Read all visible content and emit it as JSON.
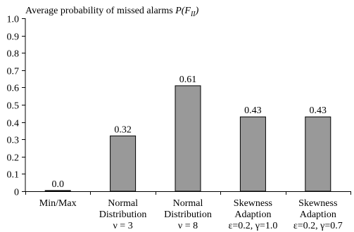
{
  "chart_data": {
    "type": "bar",
    "title": "Average probability of missed alarms P(F_II)",
    "title_parts": {
      "main": "Average probability of missed alarms ",
      "italic": "P(F",
      "subscript": "II",
      "close": ")"
    },
    "xlabel": "",
    "ylabel": "",
    "ylim": [
      0,
      1.0
    ],
    "yticks": [
      "0",
      "0.1",
      "0.2",
      "0.3",
      "0.4",
      "0.5",
      "0.6",
      "0.7",
      "0.8",
      "0.9",
      "1.0"
    ],
    "grid": false,
    "legend": "none",
    "bar_color": "#999999",
    "categories": [
      {
        "lines": [
          "Min/Max"
        ]
      },
      {
        "lines": [
          "Normal",
          "Distribution",
          "ν = 3"
        ]
      },
      {
        "lines": [
          "Normal",
          "Distribution",
          "ν = 8"
        ]
      },
      {
        "lines": [
          "Skewness",
          "Adaption",
          "ε=0.2, γ=1.0"
        ]
      },
      {
        "lines": [
          "Skewness",
          "Adaption",
          "ε=0.2, γ=0.7"
        ]
      }
    ],
    "values": [
      0.0,
      0.32,
      0.61,
      0.43,
      0.43
    ],
    "data_labels": [
      "0.0",
      "0.32",
      "0.61",
      "0.43",
      "0.43"
    ]
  }
}
